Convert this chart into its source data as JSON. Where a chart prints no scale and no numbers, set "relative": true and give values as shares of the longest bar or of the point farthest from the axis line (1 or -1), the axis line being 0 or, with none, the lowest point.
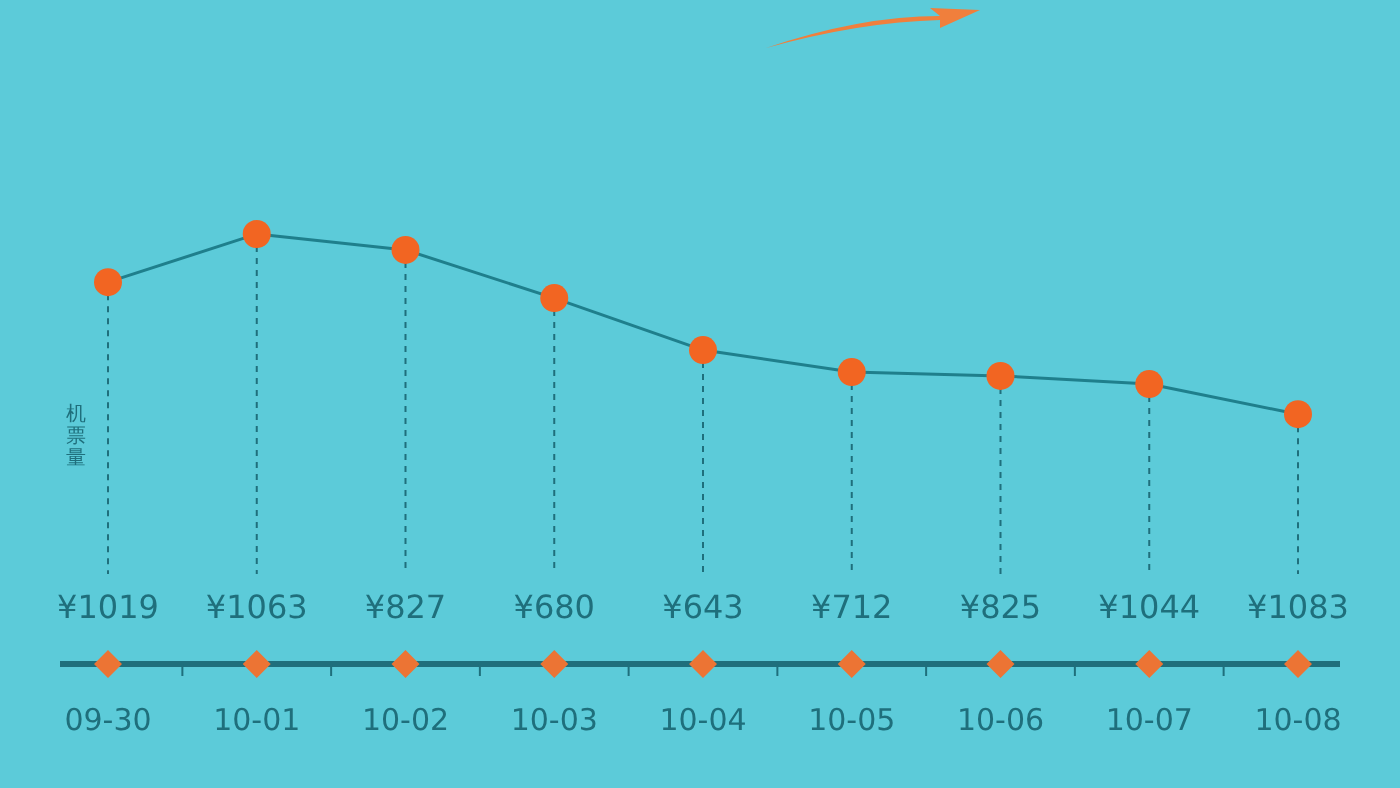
{
  "chart_data": {
    "type": "line",
    "relative": true,
    "ylabel": "机票量",
    "categories": [
      "09-30",
      "10-01",
      "10-02",
      "10-03",
      "10-04",
      "10-05",
      "10-06",
      "10-07",
      "10-08"
    ],
    "series": [
      {
        "color": "#f26522",
        "values": [
          0.888,
          1,
          0.963,
          0.851,
          0.73,
          0.679,
          0.67,
          0.651,
          0.581
        ]
      }
    ],
    "marker": "circle",
    "line_style": "solid",
    "grid": "x",
    "annotations": [
      "¥1019",
      "¥1063",
      "¥827",
      "¥680",
      "¥643",
      "¥712",
      "¥825",
      "¥1044",
      "¥1083"
    ]
  }
}
